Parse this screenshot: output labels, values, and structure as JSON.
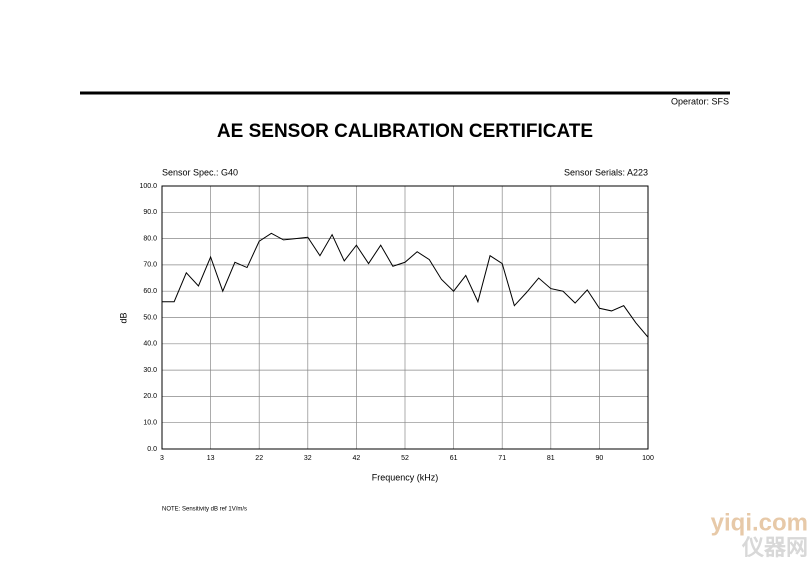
{
  "header": {
    "operator": "Operator: SFS"
  },
  "chart_data": {
    "type": "line",
    "title": "AE SENSOR CALIBRATION CERTIFICATE",
    "sensor_spec": "Sensor Spec.: G40",
    "sensor_serials": "Sensor Serials: A223",
    "xlabel": "Frequency (kHz)",
    "ylabel": "dB",
    "x": [
      3,
      5.425,
      7.85,
      10.275,
      12.7,
      15.125,
      17.55,
      19.975,
      22.4,
      24.825,
      27.25,
      29.675,
      32.1,
      34.525,
      36.95,
      39.375,
      41.8,
      44.225,
      46.65,
      49.075,
      51.5,
      53.925,
      56.35,
      58.775,
      61.2,
      63.625,
      66.05,
      68.475,
      70.9,
      73.325,
      75.75,
      78.175,
      80.6,
      83.025,
      85.45,
      87.875,
      90.3,
      92.725,
      95.15,
      97.575,
      100
    ],
    "series": [
      {
        "name": "Sensitivity",
        "color": "#000000",
        "values": [
          56,
          56,
          67,
          62,
          73,
          60,
          71,
          69,
          79,
          82,
          79.5,
          80,
          80.5,
          73.5,
          81.5,
          71.5,
          77.5,
          70.5,
          77.5,
          69.5,
          71,
          75,
          72,
          64.5,
          60,
          66,
          56,
          73.5,
          70.5,
          54.5,
          59.5,
          65,
          61,
          60,
          55.5,
          60.5,
          53.5,
          52.5,
          54.5,
          48,
          42.5
        ]
      }
    ],
    "xlim": [
      3,
      100
    ],
    "xticks": [
      3,
      {
        "value": 12.7,
        "label": "13"
      },
      {
        "value": 22.4,
        "label": "22"
      },
      {
        "value": 32.1,
        "label": "32"
      },
      {
        "value": 41.8,
        "label": "42"
      },
      {
        "value": 51.5,
        "label": "52"
      },
      {
        "value": 61.2,
        "label": "61"
      },
      {
        "value": 70.9,
        "label": "71"
      },
      {
        "value": 80.6,
        "label": "81"
      },
      {
        "value": 90.3,
        "label": "90"
      },
      100
    ],
    "ylim": [
      0,
      100
    ],
    "yticks": [
      {
        "value": 0,
        "label": "0.0"
      },
      {
        "value": 10,
        "label": "10.0"
      },
      {
        "value": 20,
        "label": "20.0"
      },
      {
        "value": 30,
        "label": "30.0"
      },
      {
        "value": 40,
        "label": "40.0"
      },
      {
        "value": 50,
        "label": "50.0"
      },
      {
        "value": 60,
        "label": "60.0"
      },
      {
        "value": 70,
        "label": "70.0"
      },
      {
        "value": 80,
        "label": "80.0"
      },
      {
        "value": 90,
        "label": "90.0"
      },
      {
        "value": 100,
        "label": "100.0"
      }
    ],
    "grid": true,
    "note": "NOTE:  Sensitivity dB ref 1V/m/s"
  },
  "watermark": {
    "site": "yiqi.com",
    "name": "仪器网"
  }
}
